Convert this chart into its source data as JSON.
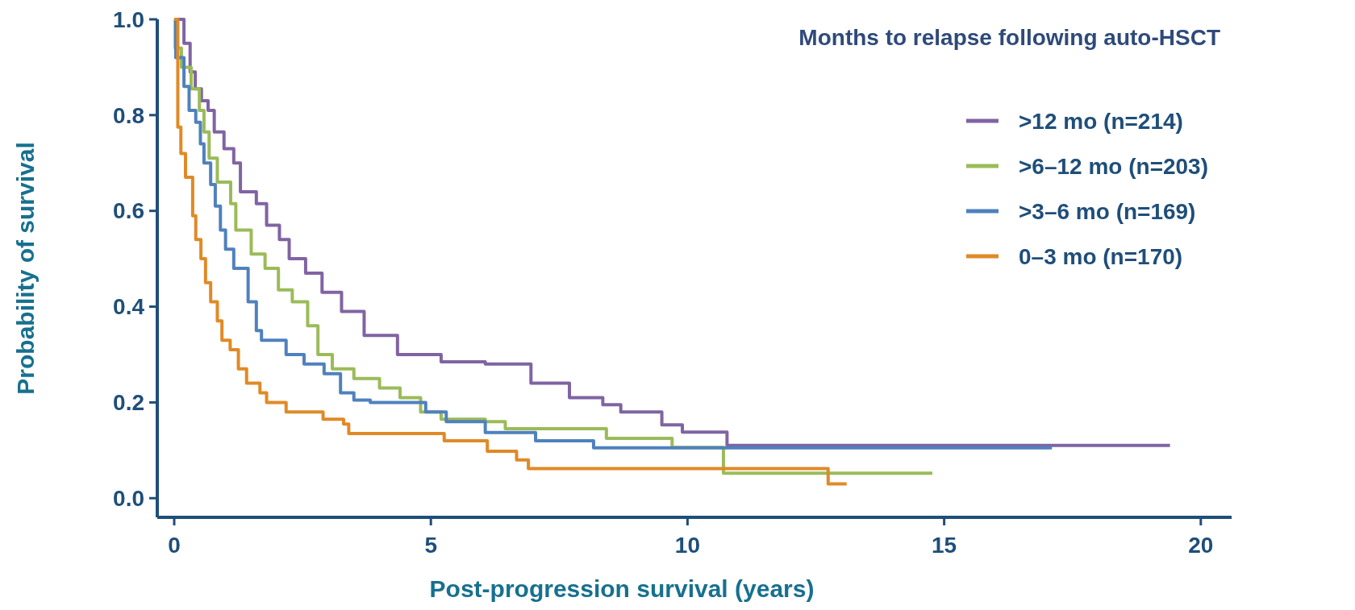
{
  "chart_data": {
    "type": "step",
    "xlabel": "Post-progression survival (years)",
    "ylabel": "Probability of survival",
    "legend_title": "Months to relapse following auto-HSCT",
    "legend": "top right",
    "line_style": "solid",
    "grid": false,
    "xlim": [
      -0.33,
      20.6
    ],
    "ylim": [
      -0.04,
      1.0
    ],
    "xticks": [
      0,
      5,
      10,
      15,
      20
    ],
    "yticks": [
      {
        "value": 0,
        "label": "0.0"
      },
      {
        "value": 0.2,
        "label": "0.2"
      },
      {
        "value": 0.4,
        "label": "0.4"
      },
      {
        "value": 0.6,
        "label": "0.6"
      },
      {
        "value": 0.8,
        "label": "0.8"
      },
      {
        "value": 1,
        "label": "1.0"
      }
    ],
    "series": [
      {
        "name": ">12 mo (n=214)",
        "color": "#8064a2",
        "x": [
          0,
          0.19,
          0.31,
          0.41,
          0.53,
          0.66,
          0.78,
          0.97,
          1.16,
          1.29,
          1.6,
          1.8,
          2.05,
          2.24,
          2.56,
          2.88,
          3.26,
          3.7,
          4.35,
          5.2,
          6.06,
          6.95,
          7.7,
          8.35,
          8.7,
          9.5,
          9.9,
          10.77,
          19.4
        ],
        "values": [
          1,
          0.95,
          0.89,
          0.855,
          0.83,
          0.81,
          0.765,
          0.73,
          0.7,
          0.64,
          0.615,
          0.57,
          0.54,
          0.5,
          0.47,
          0.43,
          0.39,
          0.34,
          0.3,
          0.285,
          0.28,
          0.24,
          0.21,
          0.195,
          0.18,
          0.153,
          0.138,
          0.11,
          0.11
        ]
      },
      {
        "name": ">6–12 mo (n=203)",
        "color": "#9bbb59",
        "x": [
          0,
          0.02,
          0.14,
          0.33,
          0.49,
          0.58,
          0.68,
          0.84,
          1.1,
          1.2,
          1.5,
          1.77,
          2.03,
          2.3,
          2.6,
          2.8,
          3.08,
          3.5,
          4,
          4.4,
          4.8,
          5.2,
          6.06,
          6.45,
          8.42,
          9.7,
          10.7,
          14.77
        ],
        "values": [
          1,
          0.94,
          0.9,
          0.855,
          0.81,
          0.765,
          0.71,
          0.66,
          0.615,
          0.56,
          0.51,
          0.48,
          0.435,
          0.41,
          0.36,
          0.3,
          0.27,
          0.25,
          0.23,
          0.21,
          0.18,
          0.165,
          0.16,
          0.145,
          0.125,
          0.106,
          0.052,
          0.052
        ]
      },
      {
        "name": ">3–6 mo (n=169)",
        "color": "#4f81bd",
        "x": [
          0,
          0.03,
          0.19,
          0.29,
          0.42,
          0.51,
          0.58,
          0.71,
          0.8,
          0.9,
          1,
          1.16,
          1.44,
          1.6,
          1.7,
          2.18,
          2.53,
          2.92,
          3.24,
          3.5,
          3.82,
          4.9,
          5.3,
          6.06,
          7.04,
          8.17,
          17.1
        ],
        "values": [
          1,
          0.92,
          0.86,
          0.81,
          0.785,
          0.74,
          0.7,
          0.655,
          0.61,
          0.56,
          0.52,
          0.48,
          0.41,
          0.35,
          0.33,
          0.3,
          0.28,
          0.26,
          0.22,
          0.205,
          0.2,
          0.18,
          0.16,
          0.137,
          0.12,
          0.105,
          0.105
        ]
      },
      {
        "name": "0–3 mo (n=170)",
        "color": "#e08a26",
        "x": [
          0,
          0.07,
          0.13,
          0.22,
          0.36,
          0.42,
          0.52,
          0.61,
          0.71,
          0.84,
          0.93,
          1.09,
          1.25,
          1.41,
          1.67,
          1.8,
          2.18,
          2.9,
          3.3,
          3.4,
          5.26,
          6.1,
          6.67,
          6.9,
          12.74,
          13.1
        ],
        "values": [
          1,
          0.775,
          0.72,
          0.67,
          0.59,
          0.54,
          0.5,
          0.45,
          0.41,
          0.37,
          0.33,
          0.31,
          0.27,
          0.24,
          0.22,
          0.2,
          0.18,
          0.165,
          0.155,
          0.135,
          0.12,
          0.098,
          0.08,
          0.062,
          0.03,
          0.03
        ]
      }
    ]
  }
}
